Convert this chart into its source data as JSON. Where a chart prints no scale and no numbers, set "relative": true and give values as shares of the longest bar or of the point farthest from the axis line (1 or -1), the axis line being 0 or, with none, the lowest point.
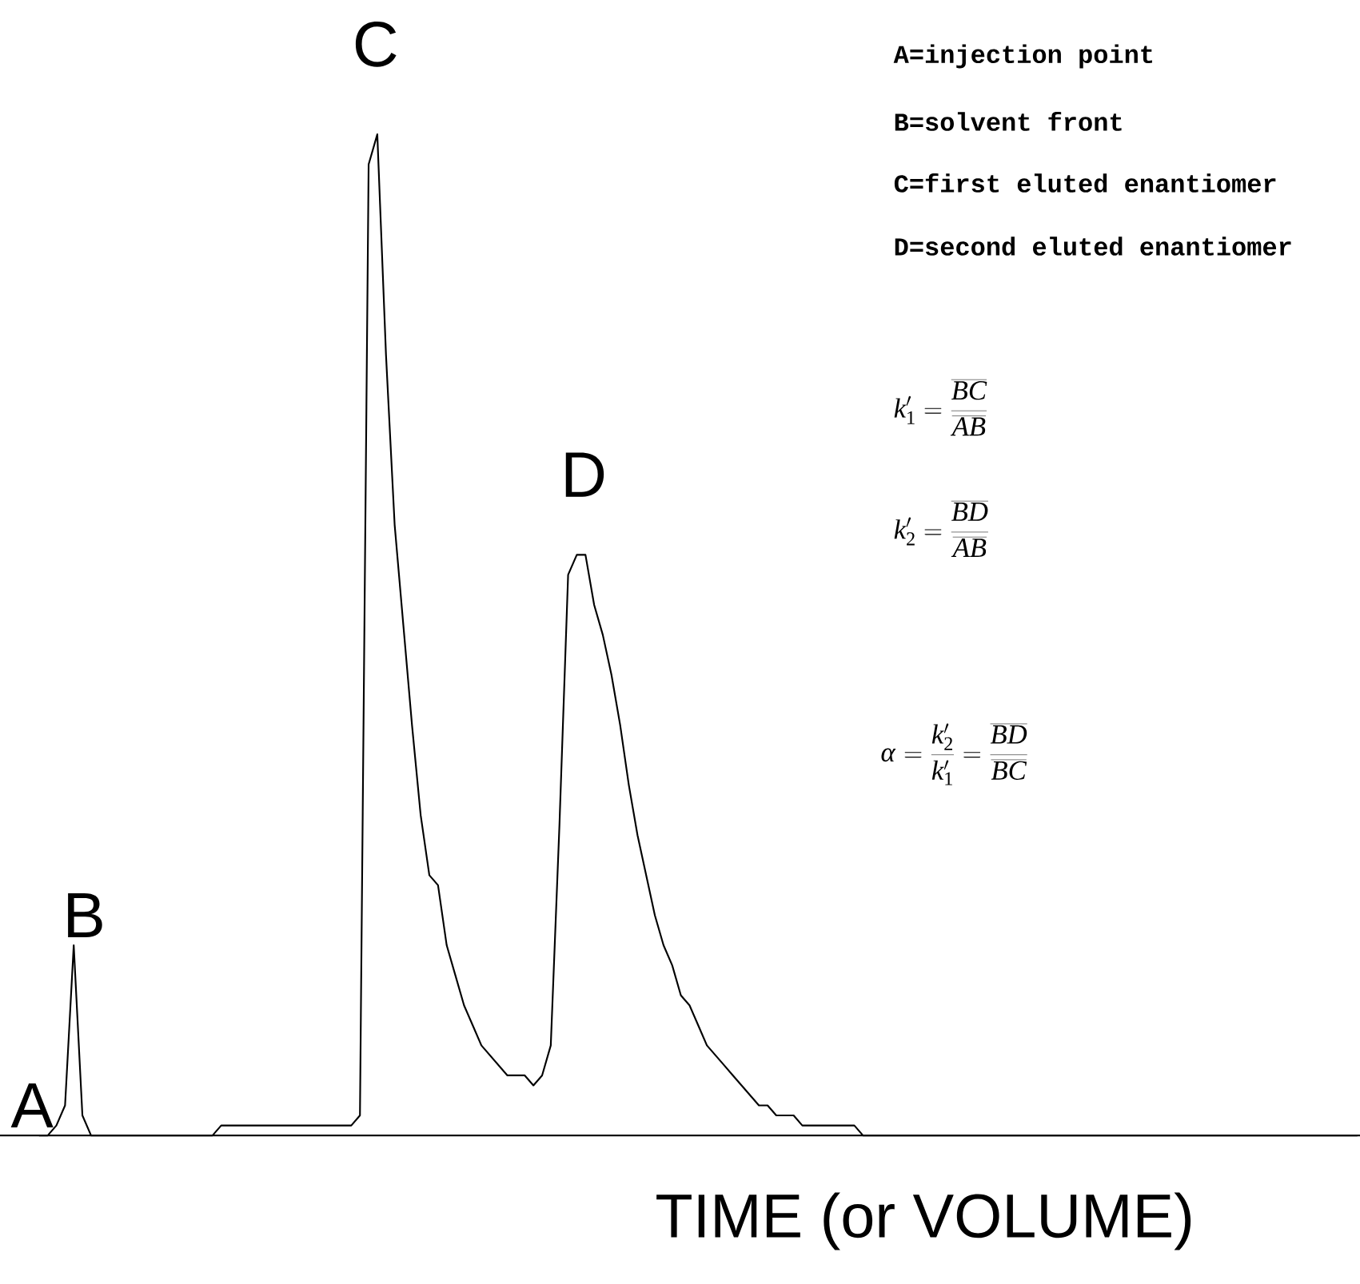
{
  "chart_data": {
    "type": "line",
    "relative": true,
    "color": "#000000",
    "marker": "none",
    "line_style": "solid",
    "xlabel": "TIME (or VOLUME)",
    "categories": [
      null,
      null,
      null,
      null,
      null,
      null,
      null,
      null,
      null,
      null,
      null,
      null,
      null,
      null,
      null,
      null,
      null,
      null,
      null,
      null,
      null,
      null,
      null,
      null,
      null,
      null,
      null,
      null,
      null,
      null,
      null,
      null,
      null,
      null,
      null,
      null,
      null,
      null,
      null,
      null,
      null,
      null,
      null,
      null,
      null,
      null,
      null,
      null,
      null,
      null,
      null,
      null,
      null,
      null,
      null,
      null,
      null,
      null,
      null,
      null,
      null,
      null,
      null,
      null,
      null,
      null,
      null,
      null,
      null,
      null,
      null,
      null,
      null,
      null,
      null,
      null,
      null,
      null,
      null,
      null,
      null,
      null,
      null,
      null,
      null,
      null,
      null,
      null,
      null,
      null,
      null,
      null,
      null,
      null,
      null,
      null,
      null,
      null,
      null,
      null,
      null,
      null,
      null,
      null,
      null,
      null,
      null,
      null,
      null,
      null,
      null,
      null,
      null,
      null,
      null,
      null,
      null,
      null,
      null,
      null,
      null,
      null,
      null,
      null,
      null,
      null,
      null,
      null,
      null,
      null,
      null,
      null,
      null,
      null,
      null,
      null,
      null,
      null,
      null,
      null,
      null,
      null,
      null,
      null,
      null,
      null,
      null,
      null,
      null,
      null,
      null,
      null,
      null
    ],
    "values": [
      0,
      0,
      0.01,
      0.03,
      0.19,
      0.02,
      0,
      0,
      0,
      0,
      0,
      0,
      0,
      0,
      0,
      0,
      0,
      0,
      0,
      0,
      0,
      0.01,
      0.01,
      0.01,
      0.01,
      0.01,
      0.01,
      0.01,
      0.01,
      0.01,
      0.01,
      0.01,
      0.01,
      0.01,
      0.01,
      0.01,
      0.01,
      0.02,
      0.97,
      1.0,
      0.78,
      0.61,
      0.51,
      0.41,
      0.32,
      0.26,
      0.25,
      0.19,
      0.16,
      0.13,
      0.11,
      0.09,
      0.08,
      0.07,
      0.06,
      0.06,
      0.06,
      0.05,
      0.06,
      0.09,
      0.31,
      0.56,
      0.58,
      0.58,
      0.53,
      0.5,
      0.46,
      0.41,
      0.35,
      0.3,
      0.26,
      0.22,
      0.19,
      0.17,
      0.14,
      0.13,
      0.11,
      0.09,
      0.08,
      0.07,
      0.06,
      0.05,
      0.04,
      0.03,
      0.03,
      0.02,
      0.02,
      0.02,
      0.01,
      0.01,
      0.01,
      0.01,
      0.01,
      0.01,
      0.01,
      0,
      0,
      0,
      0,
      0,
      0,
      0,
      0,
      0,
      0,
      0,
      0,
      0,
      0,
      0,
      0,
      0,
      0,
      0,
      0,
      0,
      0,
      0,
      0,
      0,
      0,
      0,
      0,
      0,
      0,
      0,
      0,
      0,
      0,
      0,
      0,
      0,
      0,
      0,
      0,
      0,
      0,
      0,
      0,
      0,
      0,
      0,
      0,
      0,
      0,
      0,
      0,
      0,
      0,
      0,
      0,
      0,
      0
    ],
    "annotations": [
      "A",
      "B",
      "C",
      "D",
      "A=injection point",
      "B=solvent front",
      "C=first eluted enantiomer",
      "D=second eluted enantiomer",
      "k'_1= \\frac{\\overline{BC}}{\\overline{AB}}",
      "k'_2= \\frac{\\overline{BD}}{\\overline{AB}}",
      "\\alpha = \\frac{k'_2}{k'_1} = \\frac{\\overline{BD}}{\\overline{BC}}"
    ]
  }
}
